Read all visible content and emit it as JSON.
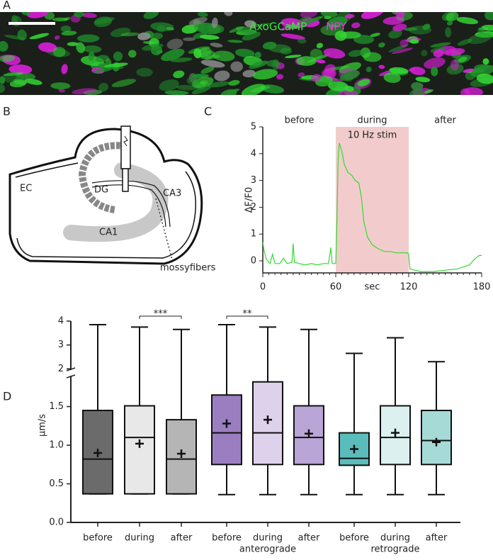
{
  "panel_labels": [
    "A",
    "B",
    "C",
    "D"
  ],
  "image": {
    "labels": [
      "AxoGCaMP",
      "NPY"
    ]
  },
  "diagram": {
    "labels": [
      "EC",
      "DG",
      "CA3",
      "CA1",
      "mossyfibers"
    ]
  },
  "chart_data": [
    {
      "type": "line",
      "x_label": "sec",
      "y_label": "ΔF/F0",
      "xlim": [
        0,
        180
      ],
      "ylim": [
        -0.45,
        5
      ],
      "xticks": [
        0,
        60,
        120,
        180
      ],
      "yticks": [
        0,
        1,
        2,
        3,
        4,
        5
      ],
      "regions": [
        {
          "label": "before",
          "from": 0,
          "to": 60
        },
        {
          "label": "during",
          "from": 60,
          "to": 120,
          "color": "#f2cccc",
          "annotation": "10 Hz stim"
        },
        {
          "label": "after",
          "from": 120,
          "to": 180
        }
      ],
      "x": [
        0,
        1,
        3,
        6,
        8,
        10,
        14,
        17,
        20,
        24,
        25,
        26,
        30,
        35,
        40,
        45,
        50,
        54,
        56,
        57,
        60,
        61,
        62,
        63,
        65,
        67,
        70,
        73,
        76,
        79,
        81,
        83,
        86,
        90,
        95,
        100,
        105,
        110,
        115,
        119,
        120,
        121,
        125,
        130,
        140,
        150,
        160,
        170,
        175,
        178,
        180
      ],
      "series": [
        {
          "color": "#2fdc2f",
          "values": [
            0.7,
            0.4,
            0.05,
            -0.1,
            0.25,
            -0.1,
            -0.1,
            0.1,
            -0.1,
            -0.05,
            0.65,
            -0.05,
            -0.1,
            -0.15,
            -0.1,
            -0.15,
            -0.1,
            -0.1,
            0.5,
            -0.1,
            -0.1,
            1.5,
            3.8,
            4.4,
            4.1,
            3.6,
            3.3,
            3.2,
            3.0,
            2.9,
            2.4,
            1.5,
            0.9,
            0.6,
            0.45,
            0.35,
            0.35,
            0.3,
            0.3,
            0.3,
            0.25,
            -0.3,
            -0.35,
            -0.4,
            -0.4,
            -0.35,
            -0.3,
            -0.15,
            0.1,
            0.2,
            0.2
          ]
        }
      ]
    },
    {
      "type": "box",
      "y_label": "µm/s",
      "ylim": [
        0,
        4
      ],
      "ybreak": [
        1.9,
        1.95
      ],
      "yticks": [
        {
          "value": 0,
          "label": "0.0"
        },
        {
          "value": 0.5,
          "label": "0.5"
        },
        {
          "value": 1,
          "label": "1.0"
        },
        {
          "value": 1.5,
          "label": "1.5"
        },
        2,
        3,
        4
      ],
      "categories": [
        "before",
        "during",
        "after",
        "before",
        "during",
        "after",
        "before",
        "during",
        "after"
      ],
      "groups": [
        null,
        null,
        null,
        null,
        "anterograde",
        null,
        null,
        "retrograde",
        null
      ],
      "boxes": [
        {
          "min": 0.37,
          "q1": 0.37,
          "median": 0.82,
          "q3": 1.45,
          "max": 3.85,
          "mean": 0.9,
          "color": "#6b6b6b"
        },
        {
          "min": 0.37,
          "q1": 0.37,
          "median": 1.1,
          "q3": 1.51,
          "max": 3.75,
          "mean": 1.02,
          "color": "#e8e8e8"
        },
        {
          "min": 0.37,
          "q1": 0.37,
          "median": 0.82,
          "q3": 1.33,
          "max": 3.65,
          "mean": 0.89,
          "color": "#b5b5b5"
        },
        {
          "min": 0.36,
          "q1": 0.75,
          "median": 1.16,
          "q3": 1.65,
          "max": 3.85,
          "mean": 1.28,
          "color": "#9a7ec0"
        },
        {
          "min": 0.36,
          "q1": 0.75,
          "median": 1.16,
          "q3": 1.82,
          "max": 3.75,
          "mean": 1.33,
          "color": "#ddd1eb"
        },
        {
          "min": 0.36,
          "q1": 0.75,
          "median": 1.1,
          "q3": 1.51,
          "max": 3.65,
          "mean": 1.15,
          "color": "#b9a5d6"
        },
        {
          "min": 0.36,
          "q1": 0.74,
          "median": 0.83,
          "q3": 1.16,
          "max": 2.65,
          "mean": 0.95,
          "color": "#5bbdbb"
        },
        {
          "min": 0.36,
          "q1": 0.75,
          "median": 1.1,
          "q3": 1.51,
          "max": 3.3,
          "mean": 1.16,
          "color": "#dcf1ef"
        },
        {
          "min": 0.36,
          "q1": 0.75,
          "median": 1.06,
          "q3": 1.45,
          "max": 2.3,
          "mean": 1.04,
          "color": "#a6dad7"
        }
      ],
      "significance": [
        {
          "label": "***",
          "from": 1,
          "to": 2
        },
        {
          "label": "**",
          "from": 3,
          "to": 4
        }
      ]
    }
  ]
}
